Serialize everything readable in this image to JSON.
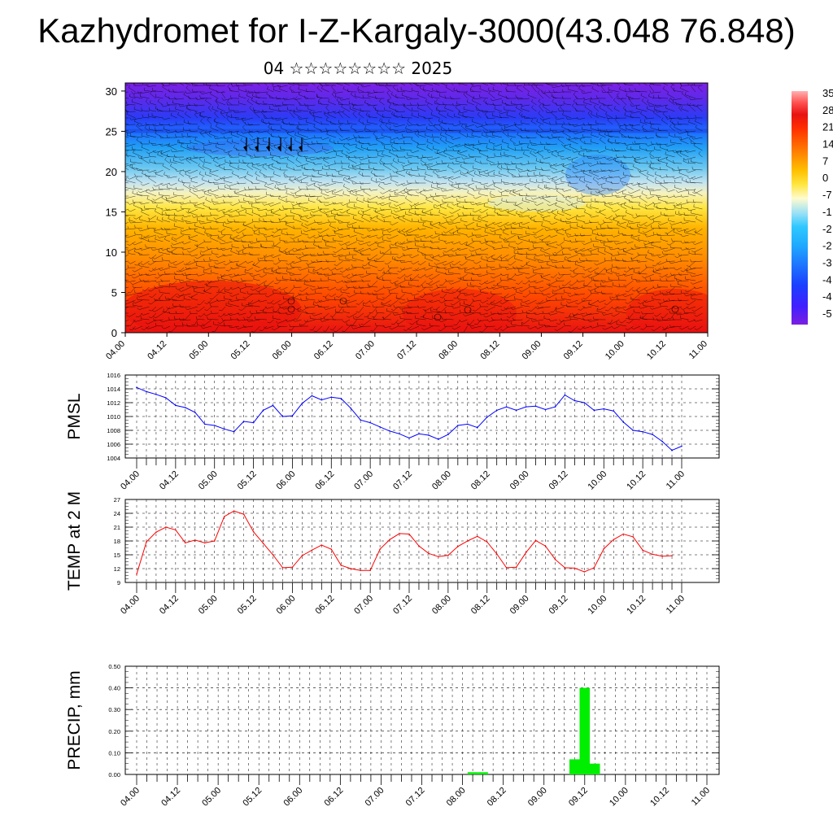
{
  "page": {
    "title": "Kazhydromet for I-Z-Kargaly-3000(43.048 76.848)",
    "subtitle": "04 ☆☆☆☆☆☆☆☆ 2025"
  },
  "colors": {
    "pmsl_line": "#0000ff",
    "temp_line": "#ff0000",
    "precip_bar": "#00ee00",
    "colorbar": [
      "#7b1fe0",
      "#4020ff",
      "#1a40ff",
      "#1e78ff",
      "#1eaaff",
      "#30c8ff",
      "#9fe2f5",
      "#fffbd0",
      "#ffe640",
      "#ffc000",
      "#ff9000",
      "#ff6000",
      "#ff2f00",
      "#e81212",
      "#ff5050",
      "#ffb0b0"
    ]
  },
  "chart_data": [
    {
      "type": "heatmap",
      "name": "cross-section",
      "ylabel": "",
      "y_ticks": [
        0,
        5,
        10,
        15,
        20,
        25,
        30
      ],
      "ylim": [
        0,
        31
      ],
      "x_ticks": [
        "04.00",
        "04.12",
        "05.00",
        "05.12",
        "06.00",
        "06.12",
        "07.00",
        "07.12",
        "08.00",
        "08.12",
        "09.00",
        "09.12",
        "10.00",
        "10.12",
        "11.00"
      ],
      "colorbar_labels": [
        "35",
        "28",
        "21",
        "14",
        "7",
        "0",
        "-7",
        "-1",
        "-2",
        "-2",
        "-3",
        "-4",
        "-4",
        "-5"
      ],
      "colorbar_range": [
        -56,
        35
      ]
    },
    {
      "type": "line",
      "name": "PMSL",
      "ylabel": "PMSL",
      "ylim": [
        1004,
        1016
      ],
      "y_ticks": [
        1004,
        1006,
        1008,
        1010,
        1012,
        1014,
        1016
      ],
      "x_ticks": [
        "04.00",
        "04.12",
        "05.00",
        "05.12",
        "06.00",
        "06.12",
        "07.00",
        "07.12",
        "08.00",
        "08.12",
        "09.00",
        "09.12",
        "10.00",
        "10.12",
        "11.00"
      ],
      "x_step_hours": 3,
      "values": [
        1014.2,
        1013.6,
        1013.2,
        1012.7,
        1011.6,
        1011.3,
        1010.6,
        1008.9,
        1008.7,
        1008.2,
        1007.8,
        1009.3,
        1009.1,
        1010.9,
        1011.6,
        1010.0,
        1010.1,
        1011.9,
        1013.0,
        1012.4,
        1012.8,
        1012.6,
        1011.2,
        1009.5,
        1009.1,
        1008.5,
        1007.9,
        1007.5,
        1006.9,
        1007.5,
        1007.3,
        1006.7,
        1007.4,
        1008.7,
        1008.9,
        1008.4,
        1009.9,
        1010.9,
        1011.4,
        1010.9,
        1011.4,
        1011.5,
        1011.0,
        1011.4,
        1013.1,
        1012.3,
        1012.0,
        1010.9,
        1011.1,
        1010.8,
        1009.2,
        1008.0,
        1007.8,
        1007.4,
        1006.4,
        1005.1,
        1005.7
      ]
    },
    {
      "type": "line",
      "name": "TEMP at 2 M",
      "ylabel": "TEMP at 2 M",
      "ylim": [
        9,
        27
      ],
      "y_ticks": [
        9,
        12,
        15,
        18,
        21,
        24,
        27
      ],
      "x_ticks": [
        "04.00",
        "04.12",
        "05.00",
        "05.12",
        "06.00",
        "06.12",
        "07.00",
        "07.12",
        "08.00",
        "08.12",
        "09.00",
        "09.12",
        "10.00",
        "10.12",
        "11.00"
      ],
      "x_step_hours": 3,
      "values": [
        10.8,
        17.8,
        19.9,
        21.0,
        20.4,
        17.6,
        18.2,
        17.6,
        18.0,
        23.3,
        24.5,
        23.8,
        20.0,
        17.5,
        15.0,
        12.2,
        12.3,
        14.8,
        16.0,
        17.1,
        16.2,
        12.7,
        12.0,
        11.6,
        11.6,
        16.2,
        18.3,
        19.6,
        19.5,
        16.9,
        15.3,
        14.6,
        14.9,
        16.8,
        18.0,
        19.0,
        17.8,
        15.2,
        12.2,
        12.3,
        15.5,
        18.1,
        16.9,
        14.0,
        12.2,
        12.1,
        11.3,
        12.2,
        16.3,
        18.3,
        19.5,
        18.9,
        16.0,
        15.1,
        14.7,
        14.8
      ]
    },
    {
      "type": "bar",
      "name": "PRECIP",
      "ylabel": "PRECIP, mm",
      "ylim": [
        0,
        0.5
      ],
      "y_ticks": [
        "0.00",
        "0.10",
        "0.20",
        "0.30",
        "0.40",
        "0.50"
      ],
      "x_ticks": [
        "04.00",
        "04.12",
        "05.00",
        "05.12",
        "06.00",
        "06.12",
        "07.00",
        "07.12",
        "08.00",
        "08.12",
        "09.00",
        "09.12",
        "10.00",
        "10.12",
        "11.00"
      ],
      "x_step_hours": 3,
      "values": [
        0,
        0,
        0,
        0,
        0,
        0,
        0,
        0,
        0,
        0,
        0,
        0,
        0,
        0,
        0,
        0,
        0,
        0,
        0,
        0,
        0,
        0,
        0,
        0,
        0,
        0,
        0,
        0,
        0,
        0,
        0,
        0,
        0,
        0.01,
        0.01,
        0,
        0,
        0,
        0,
        0,
        0,
        0,
        0,
        0.07,
        0.4,
        0.05,
        0,
        0,
        0,
        0,
        0,
        0,
        0,
        0,
        0,
        0
      ]
    }
  ]
}
